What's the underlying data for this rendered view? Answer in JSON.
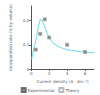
{
  "chart_data": {
    "type": "scatter",
    "xlabel": "Current density (A · dm⁻²)",
    "ylabel": "Incorporation rate (% by volume)",
    "xlim": [
      0,
      7
    ],
    "ylim": [
      0,
      0.26
    ],
    "xticks": [
      0,
      2,
      4,
      6
    ],
    "yticks": [
      0,
      0.1,
      0.2
    ],
    "grid": false,
    "legend": "bottom",
    "series": [
      {
        "type": "line",
        "color": "#66ddee",
        "x": [
          0.05,
          0.2,
          0.4,
          0.6,
          0.8,
          1.0,
          1.2,
          1.4,
          1.6,
          1.8,
          2.0,
          2.5,
          3.0,
          3.5,
          4.0,
          4.5,
          5.0,
          5.5,
          6.0,
          6.5,
          7.0
        ],
        "values": [
          0.04,
          0.07,
          0.1,
          0.135,
          0.175,
          0.205,
          0.2,
          0.185,
          0.165,
          0.145,
          0.128,
          0.105,
          0.093,
          0.085,
          0.08,
          0.077,
          0.074,
          0.072,
          0.07,
          0.068,
          0.067
        ]
      },
      {
        "name": "Experimental",
        "type": "scatter",
        "marker": "square",
        "color": "#777777",
        "x": [
          0.5,
          1.0,
          1.5,
          2.0,
          4.0,
          6.0
        ],
        "values": [
          0.08,
          0.145,
          0.205,
          0.13,
          0.1,
          0.07
        ]
      },
      {
        "name": "Theory",
        "type": "scatter",
        "marker": "square_open",
        "color": "#aaaaaa",
        "x": [
          0.5,
          1.0,
          1.5,
          2.0,
          4.0,
          6.0
        ],
        "values": [
          0.08,
          0.145,
          0.205,
          0.13,
          0.1,
          0.07
        ]
      }
    ]
  }
}
